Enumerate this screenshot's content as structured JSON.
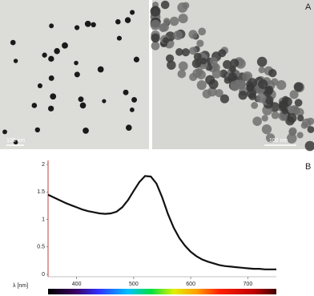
{
  "figure": {
    "panel_a_label": "A",
    "panel_b_label": "B",
    "scale_bar_left": "100 nm",
    "scale_bar_right": "100 nm"
  },
  "chart_data": {
    "type": "line",
    "x_label": "λ [nm]",
    "x": [
      350,
      360,
      370,
      380,
      390,
      400,
      410,
      420,
      430,
      440,
      450,
      460,
      470,
      480,
      490,
      500,
      510,
      520,
      530,
      540,
      550,
      560,
      570,
      580,
      590,
      600,
      610,
      620,
      630,
      640,
      650,
      660,
      670,
      680,
      690,
      700,
      710,
      720,
      730,
      740,
      750
    ],
    "series": [
      {
        "color": "#111111",
        "values": [
          1.45,
          1.4,
          1.35,
          1.3,
          1.26,
          1.22,
          1.18,
          1.15,
          1.13,
          1.11,
          1.1,
          1.11,
          1.14,
          1.22,
          1.35,
          1.52,
          1.68,
          1.79,
          1.78,
          1.65,
          1.4,
          1.1,
          0.85,
          0.66,
          0.52,
          0.41,
          0.33,
          0.27,
          0.23,
          0.2,
          0.17,
          0.15,
          0.14,
          0.13,
          0.12,
          0.11,
          0.1,
          0.1,
          0.09,
          0.09,
          0.09
        ]
      }
    ],
    "xlim": [
      350,
      750
    ],
    "xticks": [
      400,
      500,
      600,
      700
    ],
    "ylim": [
      0,
      2
    ],
    "yticks": [
      0,
      0.5,
      1,
      1.5,
      2
    ]
  }
}
